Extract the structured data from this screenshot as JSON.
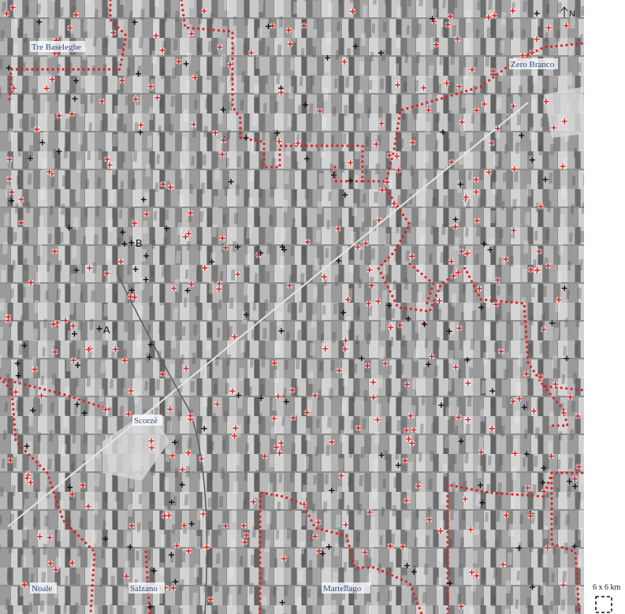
{
  "places": [
    {
      "name": "Tre Baseleghe"
    },
    {
      "name": "Zero Branco"
    },
    {
      "name": "Scorzè"
    },
    {
      "name": "Noale"
    },
    {
      "name": "Salzano"
    },
    {
      "name": "Martellago"
    }
  ],
  "markers": [
    "A",
    "B"
  ],
  "north": "N",
  "scale": "6 x 6 km"
}
